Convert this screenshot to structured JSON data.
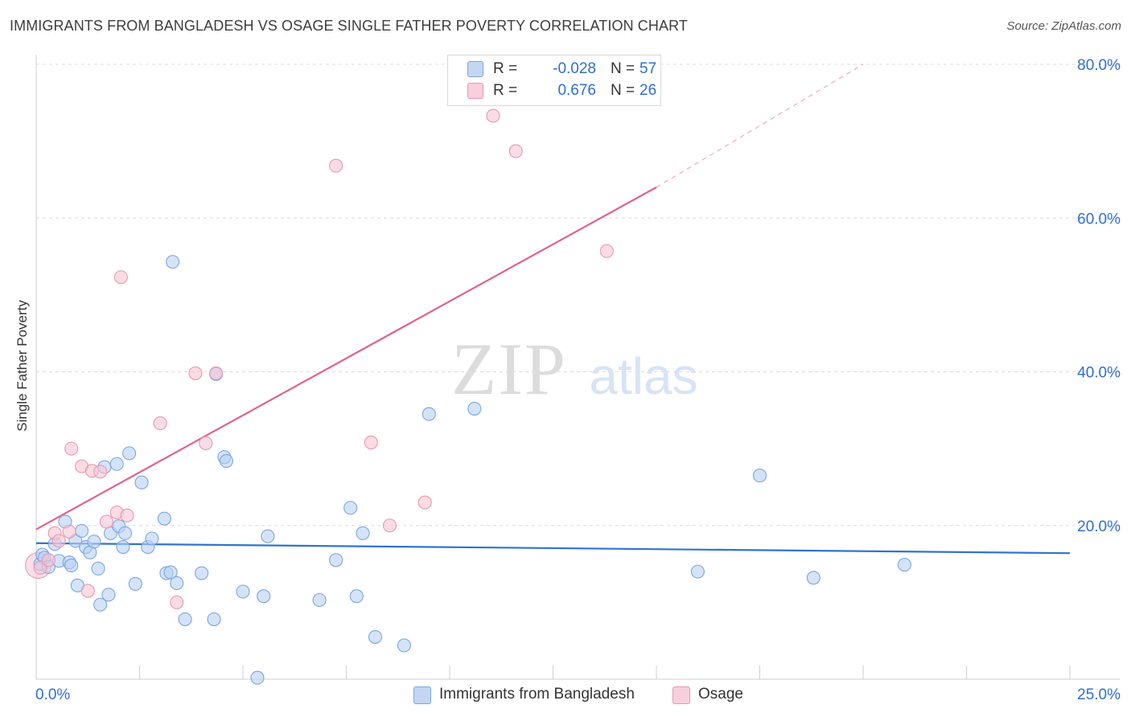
{
  "chart_data": {
    "type": "scatter",
    "title": "IMMIGRANTS FROM BANGLADESH VS OSAGE SINGLE FATHER POVERTY CORRELATION CHART",
    "source": "Source: ZipAtlas.com",
    "ylabel": "Single Father Poverty",
    "watermark": {
      "zip": "ZIP",
      "atlas": "atlas"
    },
    "xlim": [
      0,
      25
    ],
    "ylim": [
      0,
      80
    ],
    "x_tick_labels": [
      "0.0%",
      "25.0%"
    ],
    "y_ticks": [
      20,
      40,
      60,
      80
    ],
    "y_tick_labels": [
      "20.0%",
      "40.0%",
      "60.0%",
      "80.0%"
    ],
    "grid": true,
    "colors": {
      "blue_fill": "#b9d1f3",
      "blue_stroke": "#7aa6e0",
      "blue_line": "#2f74d0",
      "pink_fill": "#f6c4d3",
      "pink_stroke": "#e897b1",
      "pink_line": "#e0628c",
      "value_text": "#2f6fd0"
    },
    "legend_top": [
      {
        "r_label": "R =",
        "r_value": "-0.028",
        "n_label": "N =",
        "n_value": "57"
      },
      {
        "r_label": "R =",
        "r_value": "0.676",
        "n_label": "N =",
        "n_value": "26"
      }
    ],
    "series": [
      {
        "name": "Immigrants from Bangladesh",
        "color": "#b9d1f3",
        "trend": {
          "x": [
            0,
            25
          ],
          "y": [
            17.7,
            16.4
          ]
        },
        "points": [
          [
            0.1,
            15.0
          ],
          [
            0.15,
            16.2
          ],
          [
            0.2,
            15.8
          ],
          [
            0.3,
            14.6
          ],
          [
            0.45,
            17.6
          ],
          [
            0.55,
            15.4
          ],
          [
            0.7,
            20.5
          ],
          [
            0.8,
            15.2
          ],
          [
            0.85,
            14.8
          ],
          [
            0.95,
            18.0
          ],
          [
            1.0,
            12.2
          ],
          [
            1.1,
            19.3
          ],
          [
            1.2,
            17.2
          ],
          [
            1.3,
            16.5
          ],
          [
            1.4,
            17.9
          ],
          [
            1.5,
            14.4
          ],
          [
            1.55,
            9.7
          ],
          [
            1.65,
            27.6
          ],
          [
            1.75,
            11.0
          ],
          [
            1.8,
            19.0
          ],
          [
            1.95,
            28.0
          ],
          [
            2.0,
            19.9
          ],
          [
            2.1,
            17.2
          ],
          [
            2.15,
            19.0
          ],
          [
            2.25,
            29.4
          ],
          [
            2.4,
            12.4
          ],
          [
            2.55,
            25.6
          ],
          [
            2.7,
            17.2
          ],
          [
            2.8,
            18.3
          ],
          [
            3.1,
            20.9
          ],
          [
            3.15,
            13.8
          ],
          [
            3.25,
            13.9
          ],
          [
            3.3,
            54.3
          ],
          [
            3.4,
            12.5
          ],
          [
            3.6,
            7.8
          ],
          [
            4.0,
            13.8
          ],
          [
            4.3,
            7.8
          ],
          [
            4.35,
            39.7
          ],
          [
            4.55,
            28.9
          ],
          [
            4.6,
            28.4
          ],
          [
            5.0,
            11.4
          ],
          [
            5.5,
            10.8
          ],
          [
            5.6,
            18.6
          ],
          [
            6.85,
            10.3
          ],
          [
            7.25,
            15.5
          ],
          [
            7.6,
            22.3
          ],
          [
            7.75,
            10.8
          ],
          [
            7.9,
            19.0
          ],
          [
            8.2,
            5.5
          ],
          [
            8.9,
            4.4
          ],
          [
            5.35,
            0.2
          ],
          [
            9.5,
            34.5
          ],
          [
            10.6,
            35.2
          ],
          [
            16.0,
            14.0
          ],
          [
            17.5,
            26.5
          ],
          [
            18.8,
            13.2
          ],
          [
            21.0,
            14.9
          ]
        ]
      },
      {
        "name": "Osage",
        "color": "#f6c4d3",
        "trend": {
          "x": [
            0,
            15
          ],
          "y": [
            19.5,
            64.0
          ],
          "dash_to": {
            "x": 20.0,
            "y": 80.0
          }
        },
        "points": [
          [
            0.1,
            14.5
          ],
          [
            0.3,
            15.5
          ],
          [
            0.45,
            19.0
          ],
          [
            0.55,
            18.0
          ],
          [
            0.8,
            19.2
          ],
          [
            0.85,
            30.0
          ],
          [
            1.1,
            27.7
          ],
          [
            1.25,
            11.5
          ],
          [
            1.35,
            27.1
          ],
          [
            1.55,
            27.0
          ],
          [
            1.7,
            20.5
          ],
          [
            1.95,
            21.7
          ],
          [
            2.05,
            52.3
          ],
          [
            2.2,
            21.3
          ],
          [
            3.0,
            33.3
          ],
          [
            3.4,
            10.0
          ],
          [
            3.85,
            39.8
          ],
          [
            4.1,
            30.7
          ],
          [
            4.35,
            39.8
          ],
          [
            7.25,
            66.8
          ],
          [
            8.1,
            30.8
          ],
          [
            8.55,
            20.0
          ],
          [
            9.4,
            23.0
          ],
          [
            11.05,
            73.3
          ],
          [
            11.6,
            68.7
          ],
          [
            13.8,
            55.7
          ]
        ]
      }
    ]
  }
}
